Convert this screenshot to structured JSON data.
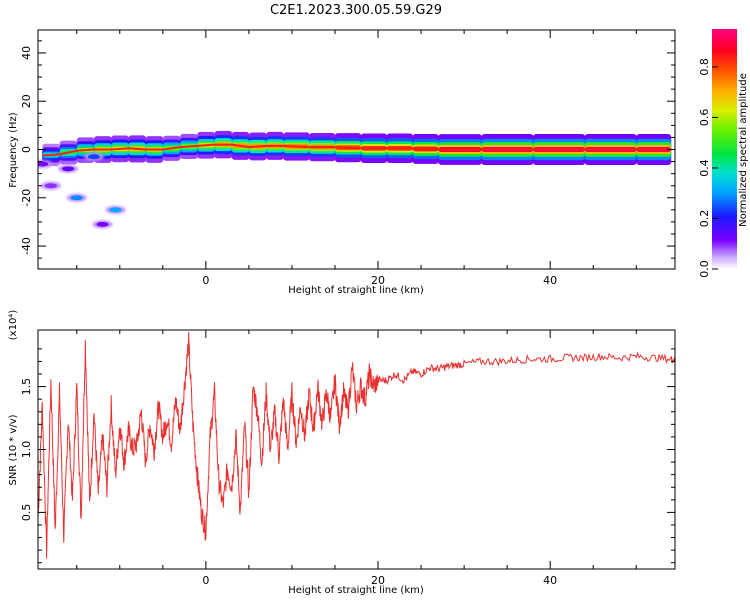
{
  "title": "C2E1.2023.300.05.59.G29",
  "colors": {
    "snr_line": "#e8312f",
    "background": "#ffffff",
    "axes": "#000000"
  },
  "chart_data": [
    {
      "type": "heatmap",
      "title": "C2E1.2023.300.05.59.G29",
      "xlabel": "Height of straight line (km)",
      "ylabel": "Frequency (Hz)",
      "xlim": [
        -19.5,
        54.5
      ],
      "ylim": [
        -49.5,
        49.5
      ],
      "xticks": [
        0,
        20,
        40
      ],
      "xtick_labels": [
        "0",
        "20",
        "40"
      ],
      "yticks": [
        -40,
        -20,
        0,
        20,
        40
      ],
      "ytick_labels": [
        "-40",
        "-20",
        "0",
        "20",
        "40"
      ],
      "colorbar": {
        "label": "Normalized spectral amplitude",
        "range": [
          0,
          0.95
        ],
        "ticks": [
          0.0,
          0.2,
          0.4,
          0.6,
          0.8
        ],
        "tick_labels": [
          "0.0",
          "0.2",
          "0.4",
          "0.6",
          "0.8"
        ],
        "colormap": "rainbow (white-purple-blue-cyan-green-yellow-orange-red-magenta)"
      },
      "ridge": [
        {
          "x": -19,
          "freq": -2.5,
          "amp": 0.35
        },
        {
          "x": -17,
          "freq": -2.0,
          "amp": 0.45
        },
        {
          "x": -15,
          "freq": -0.5,
          "amp": 0.55
        },
        {
          "x": -13,
          "freq": 0.0,
          "amp": 0.65
        },
        {
          "x": -11,
          "freq": 0.0,
          "amp": 0.7
        },
        {
          "x": -9,
          "freq": 0.5,
          "amp": 0.65
        },
        {
          "x": -7,
          "freq": 0.0,
          "amp": 0.75
        },
        {
          "x": -5,
          "freq": 0.0,
          "amp": 0.6
        },
        {
          "x": -3,
          "freq": 1.0,
          "amp": 0.55
        },
        {
          "x": -1,
          "freq": 1.5,
          "amp": 0.6
        },
        {
          "x": 1,
          "freq": 2.0,
          "amp": 0.75
        },
        {
          "x": 3,
          "freq": 2.0,
          "amp": 0.7
        },
        {
          "x": 5,
          "freq": 1.0,
          "amp": 0.8
        },
        {
          "x": 7,
          "freq": 1.5,
          "amp": 0.7
        },
        {
          "x": 9,
          "freq": 1.5,
          "amp": 0.8
        },
        {
          "x": 12,
          "freq": 1.0,
          "amp": 0.75
        },
        {
          "x": 15,
          "freq": 1.0,
          "amp": 0.8
        },
        {
          "x": 18,
          "freq": 0.5,
          "amp": 0.85
        },
        {
          "x": 21,
          "freq": 0.5,
          "amp": 0.85
        },
        {
          "x": 24,
          "freq": 0.5,
          "amp": 0.85
        },
        {
          "x": 27,
          "freq": 0.0,
          "amp": 0.9
        },
        {
          "x": 32,
          "freq": 0.0,
          "amp": 0.95
        },
        {
          "x": 38,
          "freq": 0.0,
          "amp": 0.95
        },
        {
          "x": 44,
          "freq": 0.0,
          "amp": 0.95
        },
        {
          "x": 50,
          "freq": 0.0,
          "amp": 0.95
        },
        {
          "x": 54,
          "freq": 0.0,
          "amp": 0.95
        }
      ],
      "blobs": [
        {
          "x": -15,
          "freq": -20,
          "amp": 0.3
        },
        {
          "x": -10.5,
          "freq": -25,
          "amp": 0.32
        },
        {
          "x": -16,
          "freq": -8,
          "amp": 0.15
        },
        {
          "x": -18,
          "freq": -15,
          "amp": 0.1
        },
        {
          "x": -13,
          "freq": -3,
          "amp": 0.25
        },
        {
          "x": -12,
          "freq": -31,
          "amp": 0.12
        },
        {
          "x": -19,
          "freq": -6,
          "amp": 0.12
        }
      ]
    },
    {
      "type": "line",
      "xlabel": "Height of straight line (km)",
      "ylabel": "SNR (10 * v/v)",
      "yscale_note": "(x10⁴)",
      "xlim": [
        -19.5,
        54.5
      ],
      "ylim": [
        0.05,
        1.95
      ],
      "xticks": [
        0,
        20,
        40
      ],
      "xtick_labels": [
        "0",
        "20",
        "40"
      ],
      "yticks": [
        0.5,
        1.0,
        1.5
      ],
      "ytick_labels": [
        "0.5",
        "1.0",
        "1.5"
      ],
      "series": [
        {
          "color": "#e8312f",
          "x": [
            -19.5,
            -19,
            -18.5,
            -18,
            -17.5,
            -17,
            -16.5,
            -16,
            -15.5,
            -15,
            -14.5,
            -14,
            -13.5,
            -13,
            -12.5,
            -12,
            -11.5,
            -11,
            -10.5,
            -10,
            -9.5,
            -9,
            -8.5,
            -8,
            -7.5,
            -7,
            -6.5,
            -6,
            -5.5,
            -5,
            -4.5,
            -4,
            -3.5,
            -3,
            -2.5,
            -2,
            -1.5,
            -1,
            -0.5,
            0,
            0.5,
            1,
            1.5,
            2,
            2.5,
            3,
            3.5,
            4,
            4.5,
            5,
            5.5,
            6,
            6.5,
            7,
            7.5,
            8,
            8.5,
            9,
            9.5,
            10,
            10.5,
            11,
            11.5,
            12,
            12.5,
            13,
            13.5,
            14,
            14.5,
            15,
            15.5,
            16,
            16.5,
            17,
            17.5,
            18,
            18.5,
            19,
            19.5,
            20,
            21,
            22,
            23,
            24,
            25,
            26,
            27,
            28,
            29,
            30,
            32,
            34,
            36,
            38,
            40,
            42,
            44,
            46,
            48,
            50,
            52,
            54,
            54.5
          ],
          "y": [
            0.45,
            1.35,
            0.2,
            1.55,
            0.35,
            1.45,
            0.3,
            1.25,
            0.6,
            1.5,
            0.45,
            1.85,
            0.55,
            1.3,
            0.65,
            1.1,
            0.7,
            1.35,
            0.8,
            1.2,
            0.9,
            1.15,
            1.0,
            1.05,
            1.3,
            0.9,
            1.2,
            1.0,
            1.35,
            1.1,
            1.25,
            1.05,
            1.4,
            1.15,
            1.5,
            1.85,
            1.2,
            0.8,
            0.5,
            0.35,
            1.1,
            1.45,
            0.75,
            0.55,
            0.85,
            0.7,
            1.1,
            0.5,
            1.2,
            0.65,
            1.5,
            1.3,
            0.9,
            1.45,
            1.0,
            1.3,
            0.95,
            1.4,
            1.0,
            1.45,
            1.05,
            1.35,
            1.1,
            1.45,
            1.15,
            1.5,
            1.2,
            1.45,
            1.25,
            1.55,
            1.2,
            1.45,
            1.3,
            1.65,
            1.35,
            1.5,
            1.4,
            1.6,
            1.5,
            1.55,
            1.55,
            1.6,
            1.55,
            1.62,
            1.6,
            1.65,
            1.64,
            1.66,
            1.67,
            1.68,
            1.7,
            1.7,
            1.71,
            1.72,
            1.72,
            1.73,
            1.73,
            1.74,
            1.73,
            1.74,
            1.73,
            1.72,
            1.71
          ]
        }
      ]
    }
  ]
}
